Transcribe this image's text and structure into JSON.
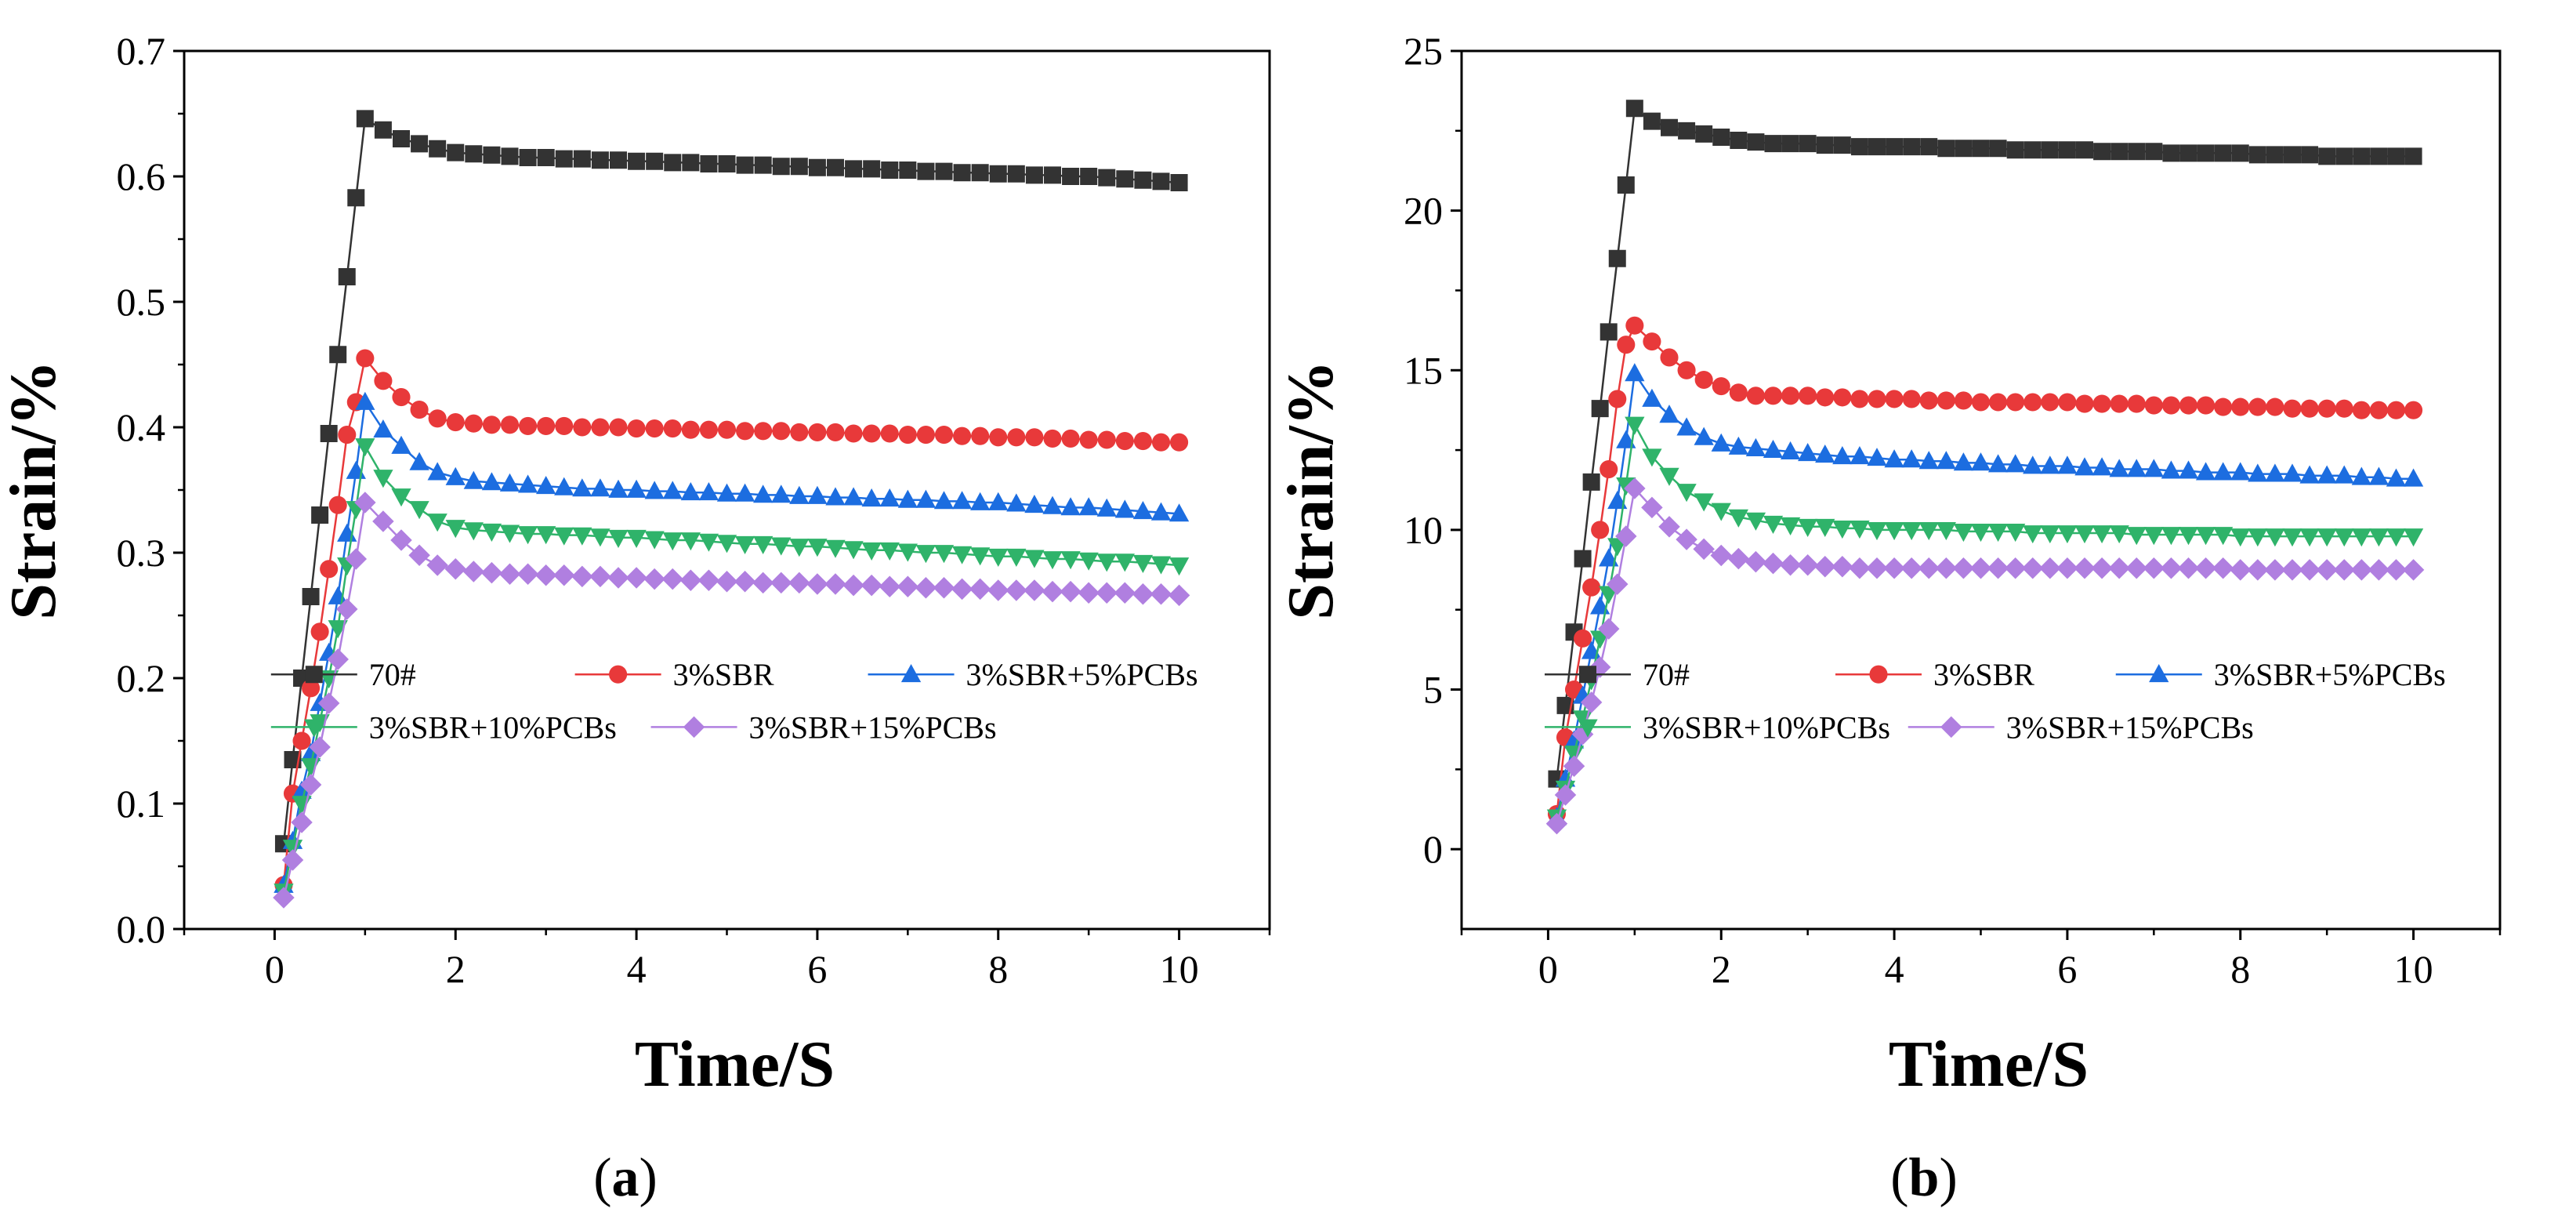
{
  "figure": {
    "panels": [
      {
        "caption_letter": "a",
        "chart_data": {
          "type": "line",
          "title": "",
          "xlabel": "Time/S",
          "ylabel": "Strain/%",
          "xlim": [
            -1,
            11
          ],
          "ylim": [
            0,
            0.7
          ],
          "xticks": [
            0,
            2,
            4,
            6,
            8,
            10
          ],
          "yticks": [
            0.0,
            0.1,
            0.2,
            0.3,
            0.4,
            0.5,
            0.6,
            0.7
          ],
          "ytick_decimals": 1,
          "grid": false,
          "legend_position": "lower-middle",
          "x": [
            0.1,
            0.2,
            0.3,
            0.4,
            0.5,
            0.6,
            0.7,
            0.8,
            0.9,
            1.0,
            1.2,
            1.4,
            1.6,
            1.8,
            2.0,
            2.2,
            2.4,
            2.6,
            2.8,
            3.0,
            3.2,
            3.4,
            3.6,
            3.8,
            4.0,
            4.2,
            4.4,
            4.6,
            4.8,
            5.0,
            5.2,
            5.4,
            5.6,
            5.8,
            6.0,
            6.2,
            6.4,
            6.6,
            6.8,
            7.0,
            7.2,
            7.4,
            7.6,
            7.8,
            8.0,
            8.2,
            8.4,
            8.6,
            8.8,
            9.0,
            9.2,
            9.4,
            9.6,
            9.8,
            10.0
          ],
          "series": [
            {
              "name": "70#",
              "color": "#333333",
              "marker": "square",
              "values": [
                0.068,
                0.135,
                0.2,
                0.265,
                0.33,
                0.395,
                0.458,
                0.52,
                0.583,
                0.646,
                0.637,
                0.63,
                0.626,
                0.622,
                0.619,
                0.618,
                0.617,
                0.616,
                0.615,
                0.615,
                0.614,
                0.614,
                0.613,
                0.613,
                0.612,
                0.612,
                0.611,
                0.611,
                0.61,
                0.61,
                0.609,
                0.609,
                0.608,
                0.608,
                0.607,
                0.607,
                0.606,
                0.606,
                0.605,
                0.605,
                0.604,
                0.604,
                0.603,
                0.603,
                0.602,
                0.602,
                0.601,
                0.601,
                0.6,
                0.6,
                0.599,
                0.598,
                0.597,
                0.596,
                0.595
              ]
            },
            {
              "name": "3%SBR",
              "color": "#e8393a",
              "marker": "circle",
              "values": [
                0.035,
                0.108,
                0.15,
                0.192,
                0.237,
                0.287,
                0.338,
                0.394,
                0.42,
                0.455,
                0.437,
                0.424,
                0.414,
                0.407,
                0.404,
                0.403,
                0.402,
                0.402,
                0.401,
                0.401,
                0.401,
                0.4,
                0.4,
                0.4,
                0.399,
                0.399,
                0.399,
                0.398,
                0.398,
                0.398,
                0.397,
                0.397,
                0.397,
                0.396,
                0.396,
                0.396,
                0.395,
                0.395,
                0.395,
                0.394,
                0.394,
                0.394,
                0.393,
                0.393,
                0.392,
                0.392,
                0.392,
                0.391,
                0.391,
                0.39,
                0.39,
                0.389,
                0.389,
                0.388,
                0.388
              ]
            },
            {
              "name": "3%SBR+5%PCBs",
              "color": "#1c6de0",
              "marker": "triangle-up",
              "values": [
                0.035,
                0.07,
                0.11,
                0.14,
                0.18,
                0.22,
                0.265,
                0.315,
                0.365,
                0.42,
                0.398,
                0.385,
                0.372,
                0.364,
                0.36,
                0.357,
                0.356,
                0.355,
                0.354,
                0.353,
                0.352,
                0.351,
                0.351,
                0.35,
                0.35,
                0.349,
                0.349,
                0.348,
                0.348,
                0.347,
                0.347,
                0.346,
                0.346,
                0.345,
                0.345,
                0.344,
                0.344,
                0.343,
                0.343,
                0.342,
                0.342,
                0.341,
                0.341,
                0.34,
                0.34,
                0.339,
                0.338,
                0.337,
                0.336,
                0.336,
                0.335,
                0.334,
                0.333,
                0.332,
                0.331
              ]
            },
            {
              "name": "3%SBR+10%PCBs",
              "color": "#2fb36a",
              "marker": "triangle-down",
              "values": [
                0.03,
                0.065,
                0.1,
                0.13,
                0.165,
                0.2,
                0.24,
                0.29,
                0.335,
                0.385,
                0.36,
                0.345,
                0.335,
                0.325,
                0.32,
                0.318,
                0.317,
                0.316,
                0.315,
                0.315,
                0.314,
                0.314,
                0.313,
                0.312,
                0.312,
                0.311,
                0.31,
                0.31,
                0.309,
                0.308,
                0.307,
                0.307,
                0.306,
                0.305,
                0.305,
                0.304,
                0.303,
                0.302,
                0.302,
                0.301,
                0.3,
                0.3,
                0.299,
                0.298,
                0.297,
                0.297,
                0.296,
                0.295,
                0.295,
                0.294,
                0.293,
                0.293,
                0.292,
                0.291,
                0.29
              ]
            },
            {
              "name": "3%SBR+15%PCBs",
              "color": "#b07fe0",
              "marker": "diamond",
              "values": [
                0.025,
                0.055,
                0.085,
                0.115,
                0.145,
                0.18,
                0.215,
                0.255,
                0.295,
                0.34,
                0.325,
                0.31,
                0.298,
                0.29,
                0.287,
                0.285,
                0.284,
                0.283,
                0.283,
                0.282,
                0.282,
                0.281,
                0.281,
                0.28,
                0.28,
                0.279,
                0.279,
                0.278,
                0.278,
                0.277,
                0.277,
                0.276,
                0.276,
                0.276,
                0.275,
                0.275,
                0.274,
                0.274,
                0.273,
                0.273,
                0.272,
                0.272,
                0.271,
                0.271,
                0.27,
                0.27,
                0.27,
                0.269,
                0.269,
                0.268,
                0.268,
                0.268,
                0.267,
                0.267,
                0.266
              ]
            }
          ]
        }
      },
      {
        "caption_letter": "b",
        "chart_data": {
          "type": "line",
          "title": "",
          "xlabel": "Time/S",
          "ylabel": "Strain/%",
          "xlim": [
            -1,
            11
          ],
          "ylim": [
            -2.5,
            25
          ],
          "xticks": [
            0,
            2,
            4,
            6,
            8,
            10
          ],
          "yticks": [
            0,
            5,
            10,
            15,
            20,
            25
          ],
          "ytick_decimals": 0,
          "grid": false,
          "legend_position": "lower-middle",
          "x": [
            0.1,
            0.2,
            0.3,
            0.4,
            0.5,
            0.6,
            0.7,
            0.8,
            0.9,
            1.0,
            1.2,
            1.4,
            1.6,
            1.8,
            2.0,
            2.2,
            2.4,
            2.6,
            2.8,
            3.0,
            3.2,
            3.4,
            3.6,
            3.8,
            4.0,
            4.2,
            4.4,
            4.6,
            4.8,
            5.0,
            5.2,
            5.4,
            5.6,
            5.8,
            6.0,
            6.2,
            6.4,
            6.6,
            6.8,
            7.0,
            7.2,
            7.4,
            7.6,
            7.8,
            8.0,
            8.2,
            8.4,
            8.6,
            8.8,
            9.0,
            9.2,
            9.4,
            9.6,
            9.8,
            10.0
          ],
          "series": [
            {
              "name": "70#",
              "color": "#333333",
              "marker": "square",
              "values": [
                2.2,
                4.5,
                6.8,
                9.1,
                11.5,
                13.8,
                16.2,
                18.5,
                20.8,
                23.2,
                22.8,
                22.6,
                22.5,
                22.4,
                22.3,
                22.2,
                22.15,
                22.1,
                22.1,
                22.1,
                22.05,
                22.05,
                22.0,
                22.0,
                22.0,
                22.0,
                22.0,
                21.95,
                21.95,
                21.95,
                21.95,
                21.9,
                21.9,
                21.9,
                21.9,
                21.9,
                21.85,
                21.85,
                21.85,
                21.85,
                21.8,
                21.8,
                21.8,
                21.8,
                21.8,
                21.75,
                21.75,
                21.75,
                21.75,
                21.7,
                21.7,
                21.7,
                21.7,
                21.7,
                21.7
              ]
            },
            {
              "name": "3%SBR",
              "color": "#e8393a",
              "marker": "circle",
              "values": [
                1.1,
                3.5,
                5.0,
                6.6,
                8.2,
                10.0,
                11.9,
                14.1,
                15.8,
                16.4,
                15.9,
                15.4,
                15.0,
                14.7,
                14.5,
                14.3,
                14.2,
                14.2,
                14.2,
                14.2,
                14.15,
                14.15,
                14.1,
                14.1,
                14.1,
                14.1,
                14.05,
                14.05,
                14.05,
                14.0,
                14.0,
                14.0,
                14.0,
                14.0,
                14.0,
                13.95,
                13.95,
                13.95,
                13.95,
                13.9,
                13.9,
                13.9,
                13.9,
                13.85,
                13.85,
                13.85,
                13.85,
                13.8,
                13.8,
                13.8,
                13.8,
                13.75,
                13.75,
                13.75,
                13.75
              ]
            },
            {
              "name": "3%SBR+5%PCBs",
              "color": "#1c6de0",
              "marker": "triangle-up",
              "values": [
                1.0,
                2.2,
                3.4,
                4.8,
                6.2,
                7.6,
                9.1,
                10.9,
                12.8,
                14.9,
                14.1,
                13.6,
                13.2,
                12.9,
                12.7,
                12.6,
                12.55,
                12.5,
                12.45,
                12.4,
                12.35,
                12.3,
                12.3,
                12.25,
                12.2,
                12.2,
                12.15,
                12.15,
                12.1,
                12.1,
                12.05,
                12.05,
                12.0,
                12.0,
                12.0,
                11.95,
                11.95,
                11.9,
                11.9,
                11.9,
                11.85,
                11.85,
                11.8,
                11.8,
                11.8,
                11.75,
                11.75,
                11.75,
                11.7,
                11.7,
                11.7,
                11.65,
                11.65,
                11.6,
                11.6
              ]
            },
            {
              "name": "3%SBR+10%PCBs",
              "color": "#2fb36a",
              "marker": "triangle-down",
              "values": [
                1.0,
                1.9,
                3.0,
                4.1,
                5.3,
                6.6,
                8.0,
                9.5,
                11.4,
                13.3,
                12.3,
                11.7,
                11.2,
                10.9,
                10.6,
                10.4,
                10.3,
                10.2,
                10.15,
                10.1,
                10.1,
                10.05,
                10.05,
                10.0,
                10.0,
                10.0,
                10.0,
                10.0,
                9.95,
                9.95,
                9.95,
                9.95,
                9.9,
                9.9,
                9.9,
                9.9,
                9.9,
                9.9,
                9.85,
                9.85,
                9.85,
                9.85,
                9.85,
                9.85,
                9.8,
                9.8,
                9.8,
                9.8,
                9.8,
                9.8,
                9.8,
                9.8,
                9.8,
                9.8,
                9.8
              ]
            },
            {
              "name": "3%SBR+15%PCBs",
              "color": "#b07fe0",
              "marker": "diamond",
              "values": [
                0.8,
                1.7,
                2.6,
                3.6,
                4.6,
                5.7,
                6.9,
                8.3,
                9.8,
                11.3,
                10.7,
                10.1,
                9.7,
                9.4,
                9.2,
                9.1,
                9.0,
                8.95,
                8.9,
                8.9,
                8.85,
                8.85,
                8.8,
                8.8,
                8.8,
                8.8,
                8.8,
                8.8,
                8.8,
                8.8,
                8.8,
                8.8,
                8.8,
                8.8,
                8.8,
                8.8,
                8.8,
                8.8,
                8.8,
                8.8,
                8.8,
                8.8,
                8.8,
                8.8,
                8.75,
                8.75,
                8.75,
                8.75,
                8.75,
                8.75,
                8.75,
                8.75,
                8.75,
                8.75,
                8.75
              ]
            }
          ]
        }
      }
    ]
  }
}
